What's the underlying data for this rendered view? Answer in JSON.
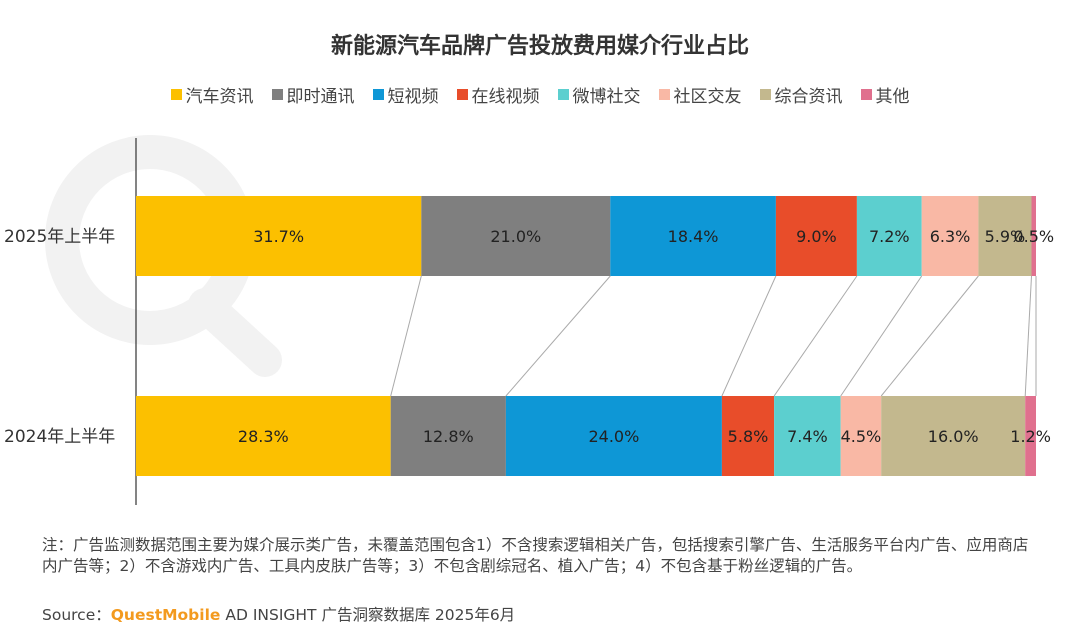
{
  "chart_data": {
    "type": "bar",
    "orientation": "horizontal",
    "stacked": true,
    "title": "新能源汽车品牌广告投放费用媒介行业占比",
    "categories": [
      "2025年上半年",
      "2024年上半年"
    ],
    "series": [
      {
        "name": "汽车资讯",
        "color": "#fcc000",
        "values": [
          31.7,
          28.3
        ],
        "labels": [
          "31.7%",
          "28.3%"
        ]
      },
      {
        "name": "即时通讯",
        "color": "#7f7f7f",
        "values": [
          21.0,
          12.8
        ],
        "labels": [
          "21.0%",
          "12.8%"
        ]
      },
      {
        "name": "短视频",
        "color": "#0e97d6",
        "values": [
          18.4,
          24.0
        ],
        "labels": [
          "18.4%",
          "24.0%"
        ]
      },
      {
        "name": "在线视频",
        "color": "#e84d2a",
        "values": [
          9.0,
          5.8
        ],
        "labels": [
          "9.0%",
          "5.8%"
        ]
      },
      {
        "name": "微博社交",
        "color": "#5ccfcf",
        "values": [
          7.2,
          7.4
        ],
        "labels": [
          "7.2%",
          "7.4%"
        ]
      },
      {
        "name": "社区交友",
        "color": "#f9b8a5",
        "values": [
          6.3,
          4.5
        ],
        "labels": [
          "6.3%",
          "4.5%"
        ]
      },
      {
        "name": "综合资讯",
        "color": "#c3b88e",
        "values": [
          5.9,
          16.0
        ],
        "labels": [
          "5.9%",
          "16.0%"
        ]
      },
      {
        "name": "其他",
        "color": "#e0708e",
        "values": [
          0.5,
          1.2
        ],
        "labels": [
          "0.5%",
          "1.2%"
        ]
      }
    ],
    "xlim": [
      0,
      100
    ],
    "legend_position": "top"
  },
  "note": "注：广告监测数据范围主要为媒介展示类广告，未覆盖范围包含1）不含搜索逻辑相关广告，包括搜索引擎广告、生活服务平台内广告、应用商店内广告等；2）不含游戏内广告、工具内皮肤广告等；3）不包含剧综冠名、植入广告；4）不包含基于粉丝逻辑的广告。",
  "source": {
    "prefix": "Source：",
    "brand": "QuestMobile",
    "suffix": " AD INSIGHT 广告洞察数据库 2025年6月"
  }
}
